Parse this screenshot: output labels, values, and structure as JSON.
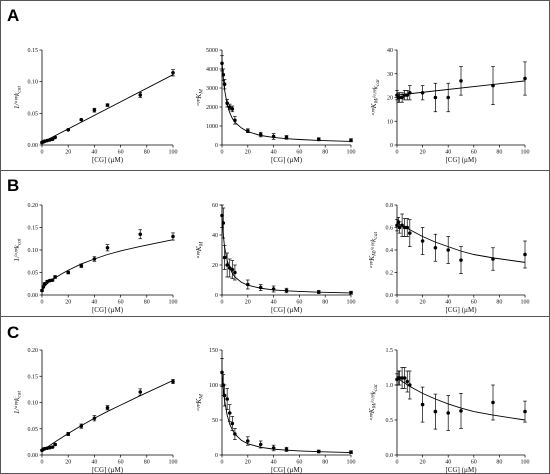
{
  "panels": [
    {
      "letter": "A"
    },
    {
      "letter": "B"
    },
    {
      "letter": "C"
    }
  ],
  "chart_data": [
    {
      "type": "scatter",
      "panel": "A",
      "column": 1,
      "ylabel": "1/ᵃᵖᵖk_cat",
      "xlabel": "[CG] (µM)",
      "xlim": [
        0,
        100
      ],
      "ylim": [
        0,
        0.15
      ],
      "xticks": [
        "0",
        "20",
        "40",
        "60",
        "80",
        "100"
      ],
      "yticks": [
        "0.00",
        "0.05",
        "0.10",
        "0.15"
      ],
      "fit": "linear",
      "x": [
        0,
        1,
        2,
        4,
        6,
        8,
        10,
        20,
        30,
        40,
        50,
        75,
        100
      ],
      "y": [
        0.004,
        0.005,
        0.006,
        0.007,
        0.008,
        0.009,
        0.012,
        0.024,
        0.04,
        0.055,
        0.063,
        0.079,
        0.114
      ],
      "err": [
        0.001,
        0.001,
        0.001,
        0.001,
        0.001,
        0.001,
        0.001,
        0.001,
        0.001,
        0.003,
        0.002,
        0.004,
        0.005
      ],
      "curve_x": [
        0,
        100
      ],
      "curve_y": [
        0.004,
        0.111
      ]
    },
    {
      "type": "scatter",
      "panel": "A",
      "column": 2,
      "ylabel": "ᵃᵖᵖK_M",
      "xlabel": "[CG] (µM)",
      "xlim": [
        0,
        100
      ],
      "ylim": [
        0,
        5000
      ],
      "xticks": [
        "0",
        "20",
        "40",
        "60",
        "80",
        "100"
      ],
      "yticks": [
        "0",
        "1000",
        "2000",
        "3000",
        "4000",
        "5000"
      ],
      "fit": "hyperbolic decay",
      "x": [
        0,
        1,
        2,
        4,
        6,
        8,
        10,
        20,
        30,
        40,
        50,
        75,
        100
      ],
      "y": [
        4300,
        3700,
        3200,
        2200,
        2000,
        1900,
        1300,
        750,
        550,
        450,
        400,
        300,
        250
      ],
      "err": [
        400,
        300,
        250,
        200,
        150,
        150,
        200,
        100,
        120,
        150,
        100,
        80,
        80
      ],
      "curve_x": [
        0,
        1,
        2,
        4,
        6,
        8,
        10,
        15,
        20,
        30,
        40,
        50,
        60,
        75,
        100
      ],
      "curve_y": [
        4400,
        3500,
        2900,
        2150,
        1700,
        1400,
        1200,
        900,
        700,
        500,
        400,
        330,
        290,
        240,
        190
      ]
    },
    {
      "type": "scatter",
      "panel": "A",
      "column": 3,
      "ylabel": "ᵃᵖᵖK_M/ᵃᵖᵖk_cat",
      "xlabel": "[CG] (µM)",
      "xlim": [
        0,
        100
      ],
      "ylim": [
        0,
        40
      ],
      "xticks": [
        "0",
        "20",
        "40",
        "60",
        "80",
        "100"
      ],
      "yticks": [
        "0",
        "10",
        "20",
        "30",
        "40"
      ],
      "fit": "linear",
      "x": [
        0,
        1,
        2,
        4,
        6,
        8,
        10,
        20,
        30,
        40,
        50,
        75,
        100
      ],
      "y": [
        21,
        20,
        20,
        20,
        21,
        21,
        22,
        22,
        20,
        20,
        27,
        25,
        28
      ],
      "err": [
        2,
        2,
        2,
        2,
        2,
        2,
        3,
        3,
        6,
        6,
        6,
        8,
        7
      ],
      "curve_x": [
        0,
        100
      ],
      "curve_y": [
        21,
        27
      ]
    },
    {
      "type": "scatter",
      "panel": "B",
      "column": 1,
      "ylabel": "1/ᵃᵖᵖk_cat",
      "xlabel": "[CG] (µM)",
      "xlim": [
        0,
        100
      ],
      "ylim": [
        0,
        0.2
      ],
      "xticks": [
        "0",
        "20",
        "40",
        "60",
        "80",
        "100"
      ],
      "yticks": [
        "0.00",
        "0.05",
        "0.10",
        "0.15",
        "0.20"
      ],
      "fit": "hyperbolic",
      "x": [
        0,
        1,
        2,
        4,
        6,
        8,
        10,
        20,
        30,
        40,
        50,
        75,
        100
      ],
      "y": [
        0.01,
        0.018,
        0.025,
        0.03,
        0.032,
        0.033,
        0.04,
        0.05,
        0.065,
        0.08,
        0.105,
        0.135,
        0.13
      ],
      "err": [
        0.002,
        0.002,
        0.002,
        0.002,
        0.002,
        0.002,
        0.003,
        0.003,
        0.004,
        0.005,
        0.007,
        0.01,
        0.008
      ],
      "curve_x": [
        0,
        2,
        5,
        10,
        15,
        20,
        30,
        40,
        50,
        60,
        75,
        100
      ],
      "curve_y": [
        0.01,
        0.019,
        0.028,
        0.038,
        0.047,
        0.055,
        0.069,
        0.08,
        0.09,
        0.098,
        0.108,
        0.123
      ]
    },
    {
      "type": "scatter",
      "panel": "B",
      "column": 2,
      "ylabel": "ᵃᵖᵖK_M",
      "xlabel": "[CG] (µM)",
      "xlim": [
        0,
        100
      ],
      "ylim": [
        0,
        60
      ],
      "xticks": [
        "0",
        "20",
        "40",
        "60",
        "80",
        "100"
      ],
      "yticks": [
        "0",
        "20",
        "40",
        "60"
      ],
      "fit": "hyperbolic decay",
      "x": [
        0,
        1,
        2,
        4,
        6,
        8,
        10,
        20,
        30,
        40,
        50,
        75,
        100
      ],
      "y": [
        53,
        48,
        25,
        20,
        18,
        17,
        15,
        7,
        5,
        4,
        3,
        2,
        1.5
      ],
      "err": [
        8,
        10,
        8,
        8,
        6,
        6,
        5,
        3,
        2,
        2,
        1.5,
        1,
        1
      ],
      "curve_x": [
        0,
        1,
        2,
        4,
        6,
        8,
        10,
        15,
        20,
        30,
        40,
        50,
        60,
        75,
        100
      ],
      "curve_y": [
        54,
        40,
        32,
        23,
        18,
        14.5,
        12,
        8.5,
        6.5,
        4.5,
        3.4,
        2.8,
        2.4,
        1.9,
        1.4
      ]
    },
    {
      "type": "scatter",
      "panel": "B",
      "column": 3,
      "ylabel": "ᵃᵖᵖK_M/ᵃᵖᵖk_cat",
      "xlabel": "[CG] (µM)",
      "xlim": [
        0,
        100
      ],
      "ylim": [
        0,
        0.8
      ],
      "xticks": [
        "0",
        "20",
        "40",
        "60",
        "80",
        "100"
      ],
      "yticks": [
        "0.0",
        "0.2",
        "0.4",
        "0.6",
        "0.8"
      ],
      "fit": "exponential decay",
      "x": [
        0,
        1,
        2,
        4,
        6,
        8,
        10,
        20,
        30,
        40,
        50,
        75,
        100
      ],
      "y": [
        0.62,
        0.65,
        0.6,
        0.62,
        0.6,
        0.6,
        0.55,
        0.48,
        0.42,
        0.4,
        0.31,
        0.32,
        0.36
      ],
      "err": [
        0.05,
        0.04,
        0.05,
        0.1,
        0.08,
        0.08,
        0.12,
        0.12,
        0.12,
        0.12,
        0.12,
        0.1,
        0.12
      ],
      "curve_x": [
        0,
        10,
        20,
        30,
        40,
        50,
        60,
        75,
        100
      ],
      "curve_y": [
        0.64,
        0.58,
        0.52,
        0.47,
        0.43,
        0.39,
        0.36,
        0.33,
        0.29
      ]
    },
    {
      "type": "scatter",
      "panel": "C",
      "column": 1,
      "ylabel": "1/ᵃᵖᵖk_cat",
      "xlabel": "[CG] (µM)",
      "xlim": [
        0,
        100
      ],
      "ylim": [
        0,
        0.2
      ],
      "xticks": [
        "0",
        "20",
        "40",
        "60",
        "80",
        "100"
      ],
      "yticks": [
        "0.00",
        "0.05",
        "0.10",
        "0.15",
        "0.20"
      ],
      "fit": "slightly curved",
      "x": [
        0,
        1,
        2,
        4,
        6,
        8,
        10,
        20,
        30,
        40,
        50,
        75,
        100
      ],
      "y": [
        0.009,
        0.011,
        0.012,
        0.013,
        0.014,
        0.015,
        0.02,
        0.04,
        0.055,
        0.07,
        0.09,
        0.12,
        0.14
      ],
      "err": [
        0.001,
        0.001,
        0.001,
        0.001,
        0.001,
        0.001,
        0.002,
        0.003,
        0.004,
        0.005,
        0.004,
        0.006,
        0.004
      ],
      "curve_x": [
        0,
        10,
        20,
        30,
        40,
        50,
        60,
        75,
        100
      ],
      "curve_y": [
        0.008,
        0.025,
        0.041,
        0.056,
        0.07,
        0.083,
        0.095,
        0.113,
        0.142
      ]
    },
    {
      "type": "scatter",
      "panel": "C",
      "column": 2,
      "ylabel": "ᵃᵖᵖK_M",
      "xlabel": "[CG] (µM)",
      "xlim": [
        0,
        100
      ],
      "ylim": [
        0,
        150
      ],
      "xticks": [
        "0",
        "20",
        "40",
        "60",
        "80",
        "100"
      ],
      "yticks": [
        "0",
        "50",
        "100",
        "150"
      ],
      "fit": "hyperbolic decay",
      "x": [
        0,
        1,
        2,
        4,
        6,
        8,
        10,
        20,
        30,
        40,
        50,
        75,
        100
      ],
      "y": [
        118,
        100,
        85,
        80,
        60,
        45,
        30,
        20,
        15,
        10,
        8,
        5,
        4
      ],
      "err": [
        20,
        15,
        15,
        15,
        12,
        10,
        8,
        6,
        5,
        4,
        3,
        2,
        2
      ],
      "curve_x": [
        0,
        1,
        2,
        4,
        6,
        8,
        10,
        15,
        20,
        30,
        40,
        50,
        60,
        75,
        100
      ],
      "curve_y": [
        120,
        95,
        78,
        57,
        44,
        36,
        30,
        21,
        16,
        11,
        8.4,
        6.9,
        5.8,
        4.7,
        3.5
      ]
    },
    {
      "type": "scatter",
      "panel": "C",
      "column": 3,
      "ylabel": "ᵃᵖᵖK_M/ᵃᵖᵖk_cat",
      "xlabel": "[CG] (µM)",
      "xlim": [
        0,
        100
      ],
      "ylim": [
        0,
        1.5
      ],
      "xticks": [
        "0",
        "20",
        "40",
        "60",
        "80",
        "100"
      ],
      "yticks": [
        "0.0",
        "0.5",
        "1.0",
        "1.5"
      ],
      "fit": "exponential decay",
      "x": [
        0,
        1,
        2,
        4,
        6,
        8,
        10,
        20,
        30,
        40,
        50,
        75,
        100
      ],
      "y": [
        1.08,
        1.1,
        1.1,
        1.1,
        1.1,
        1.05,
        1.0,
        0.72,
        0.62,
        0.6,
        0.63,
        0.75,
        0.62
      ],
      "err": [
        0.08,
        0.1,
        0.1,
        0.15,
        0.15,
        0.15,
        0.2,
        0.25,
        0.25,
        0.25,
        0.25,
        0.25,
        0.15
      ],
      "curve_x": [
        0,
        10,
        20,
        30,
        40,
        50,
        60,
        75,
        100
      ],
      "curve_y": [
        1.1,
        0.98,
        0.88,
        0.8,
        0.73,
        0.67,
        0.62,
        0.57,
        0.5
      ]
    }
  ]
}
